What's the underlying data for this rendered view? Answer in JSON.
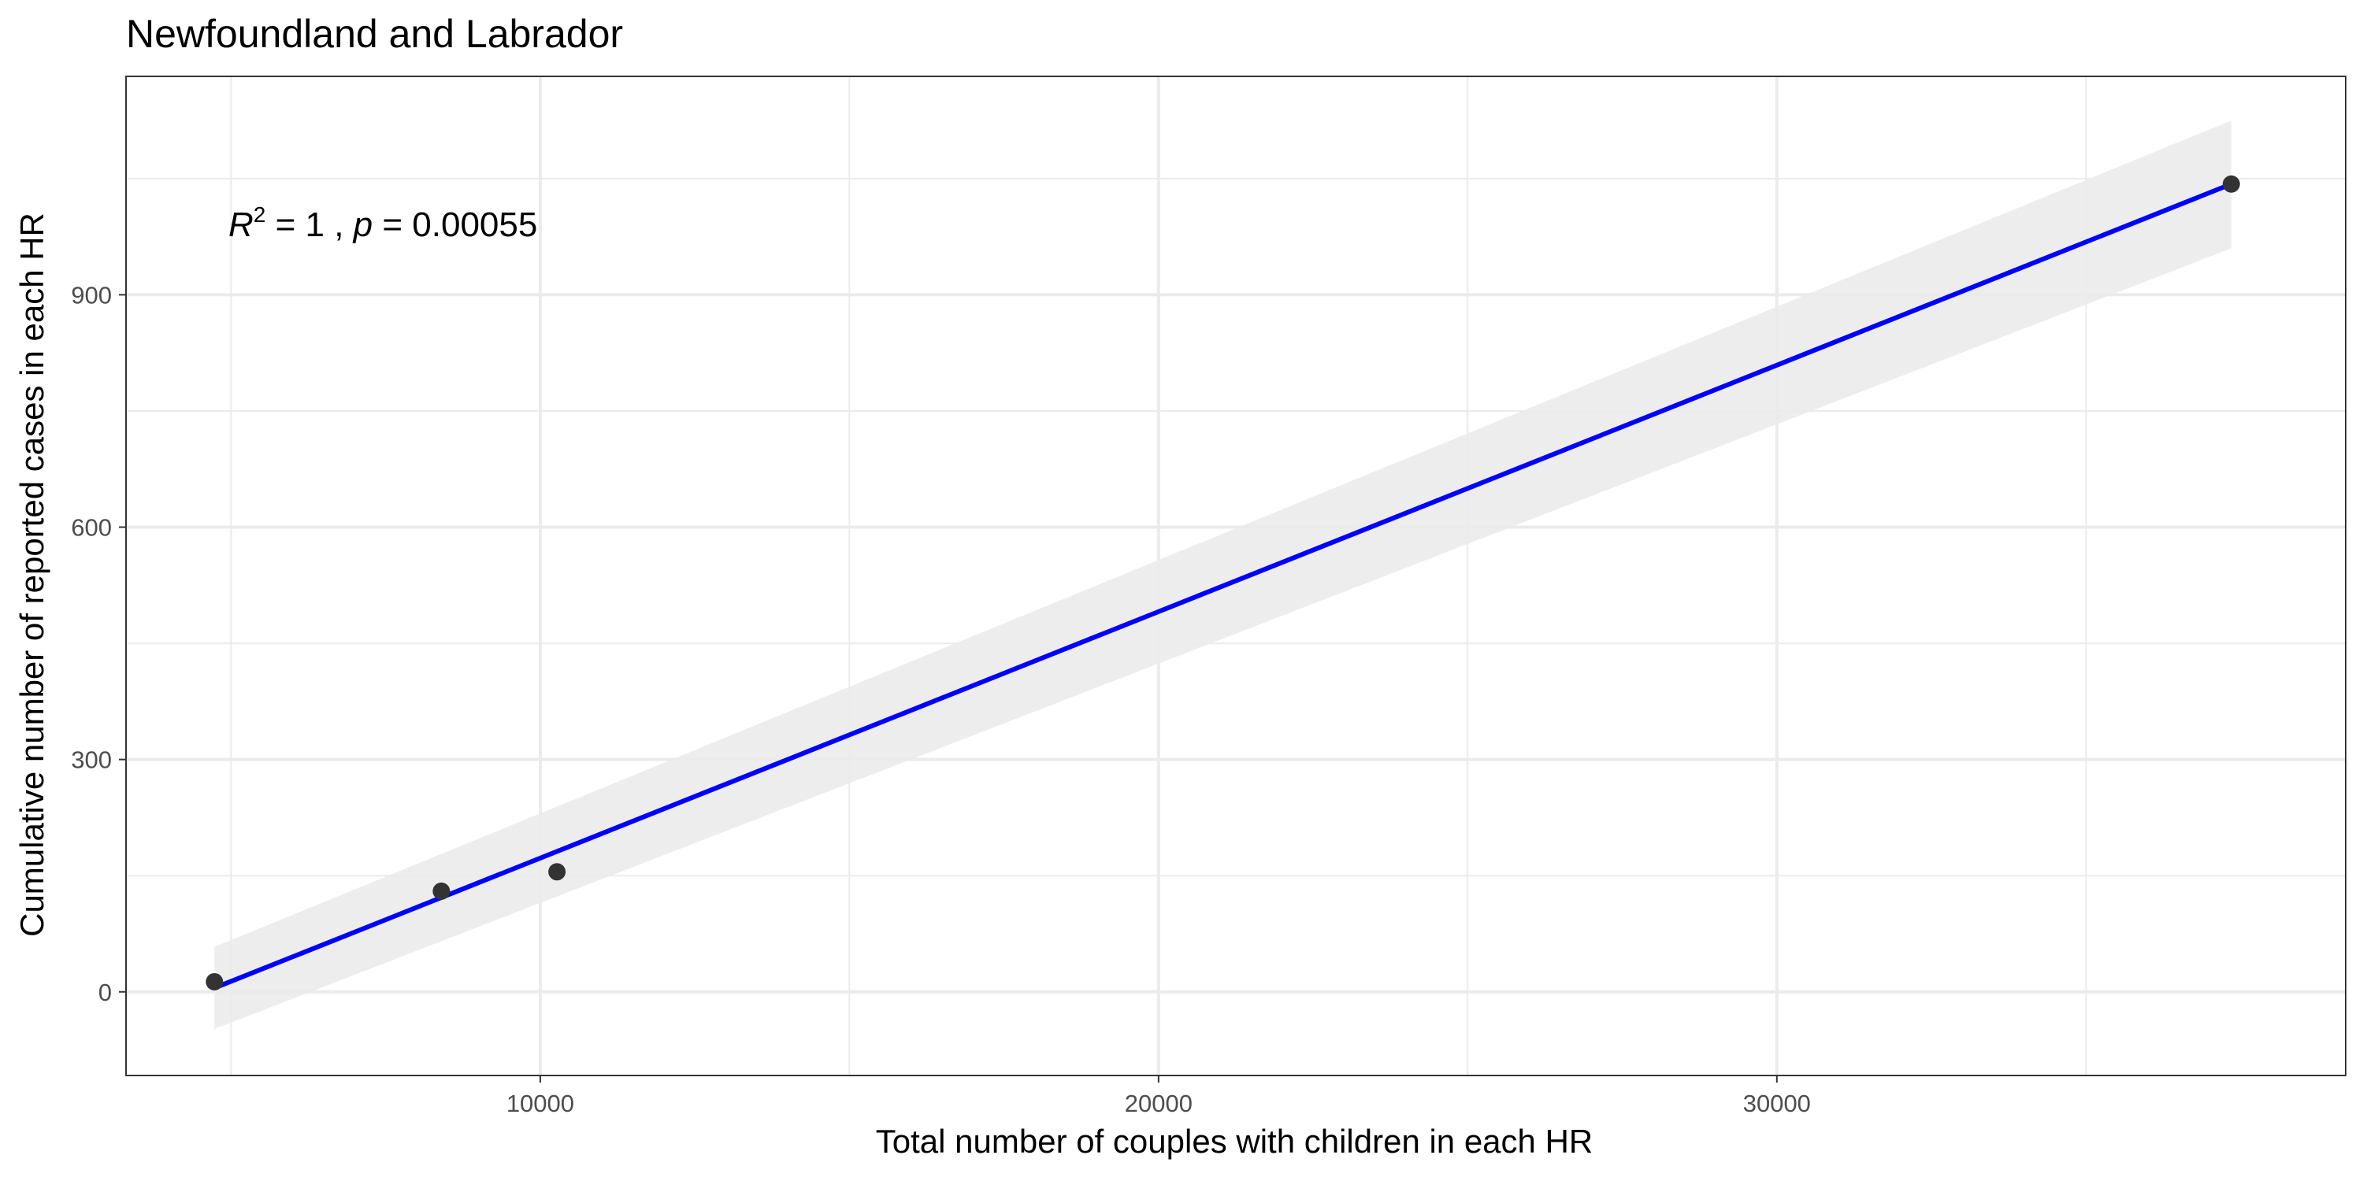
{
  "chart_data": {
    "type": "scatter",
    "title": "Newfoundland and Labrador",
    "xlabel": "Total number of couples with children in each HR",
    "ylabel": "Cumulative number of reported cases in each HR",
    "xlim": [
      3300,
      39200
    ],
    "ylim": [
      -108,
      1182
    ],
    "x_ticks": [
      10000,
      20000,
      30000
    ],
    "x_tick_labels": [
      "10000",
      "20000",
      "30000"
    ],
    "y_ticks": [
      0,
      300,
      600,
      900
    ],
    "y_tick_labels": [
      "0",
      "300",
      "600",
      "900"
    ],
    "grid": true,
    "legend": "none",
    "points": [
      {
        "x": 4730,
        "y": 13
      },
      {
        "x": 8400,
        "y": 130
      },
      {
        "x": 10270,
        "y": 155
      },
      {
        "x": 37350,
        "y": 1043
      }
    ],
    "fit": {
      "x_start": 4730,
      "y_start": 5,
      "x_end": 37350,
      "y_end": 1043,
      "band": [
        {
          "x": 4730,
          "lo": -48,
          "hi": 58
        },
        {
          "x": 37350,
          "lo": 960,
          "hi": 1125
        }
      ]
    },
    "annotation": {
      "r_symbol": "R",
      "r_exponent": "2",
      "r_value": " = 1 , ",
      "p_symbol": "p",
      "p_value": " = 0.00055"
    },
    "colors": {
      "fit_line": "#0000ff",
      "band": "#ebebeb",
      "point": "#333333",
      "grid": "#ebebeb",
      "panel_border": "#333333"
    }
  }
}
